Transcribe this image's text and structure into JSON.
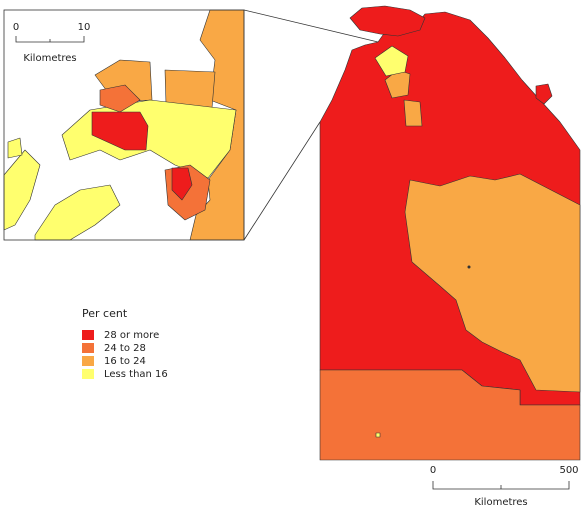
{
  "inset": {
    "scale": {
      "ticks": [
        0,
        10
      ],
      "unit": "Kilometres"
    }
  },
  "legend": {
    "title": "Per cent",
    "items": [
      {
        "label": "28 or more",
        "color": "#ee1c1c"
      },
      {
        "label": "24 to 28",
        "color": "#f47238"
      },
      {
        "label": "16 to 24",
        "color": "#f9a845"
      },
      {
        "label": "Less than 16",
        "color": "#ffff6e"
      }
    ]
  },
  "main": {
    "scale": {
      "ticks": [
        0,
        500
      ],
      "unit": "Kilometres"
    }
  }
}
